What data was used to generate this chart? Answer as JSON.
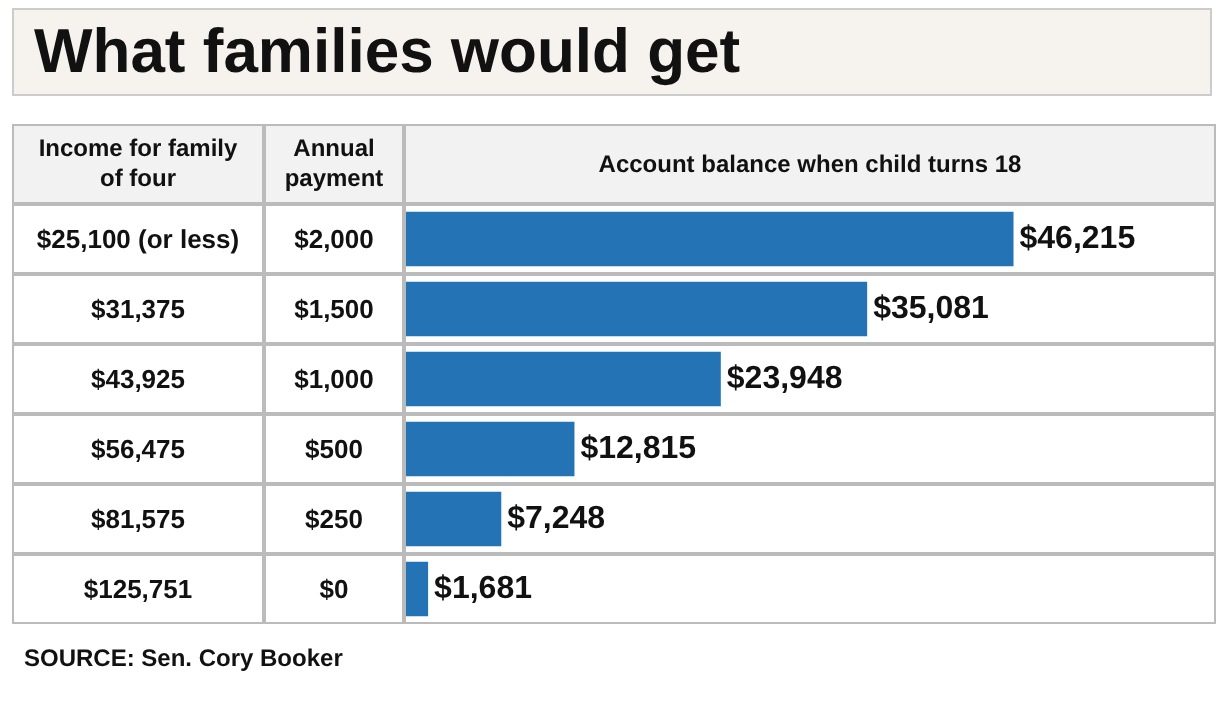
{
  "chart_data": {
    "type": "bar",
    "orientation": "horizontal",
    "title": "What families would get",
    "ylabel": "Income for family of four",
    "xlabel": "Account balance when child turns 18",
    "categories": [
      "$25,100 (or less)",
      "$31,375",
      "$43,925",
      "$56,475",
      "$81,575",
      "$125,751"
    ],
    "values": [
      46215,
      35081,
      23948,
      12815,
      7248,
      1681
    ],
    "value_labels": [
      "$46,215",
      "$35,081",
      "$23,948",
      "$12,815",
      "$7,248",
      "$1,681"
    ],
    "color": "#2474b5",
    "annotations": [
      "Annual payment",
      "$2,000",
      "$1,500",
      "$1,000",
      "$500",
      "$250",
      "$0",
      "SOURCE: Sen. Cory Booker"
    ]
  }
}
